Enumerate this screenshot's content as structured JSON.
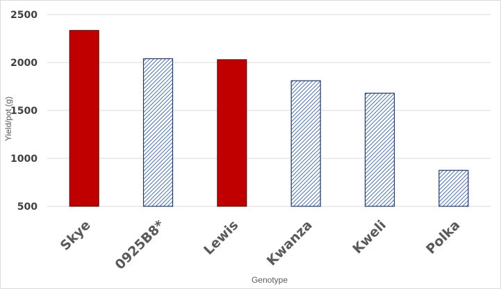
{
  "chart_data": {
    "type": "bar",
    "title": "",
    "xlabel": "Genotype",
    "ylabel": "Yield/pot (g)",
    "ylim": [
      500,
      2500
    ],
    "yticks": [
      500,
      1000,
      1500,
      2000,
      2500
    ],
    "grid": true,
    "legend": "none",
    "categories": [
      "Skye",
      "0925B8*",
      "Lewis",
      "Kwanza",
      "Kweli",
      "Polka"
    ],
    "values": [
      2335,
      2040,
      2030,
      1810,
      1680,
      875
    ],
    "bar_styles": [
      "solid",
      "hatched",
      "solid",
      "hatched",
      "hatched",
      "hatched"
    ],
    "colors": {
      "solid_fill": "#c00000",
      "hatch_line": "#4a6fa5",
      "hatch_outline": "#1f3864",
      "grid": "#d9d9d9",
      "tick_text": "#404040",
      "category_text": "#595959"
    }
  }
}
